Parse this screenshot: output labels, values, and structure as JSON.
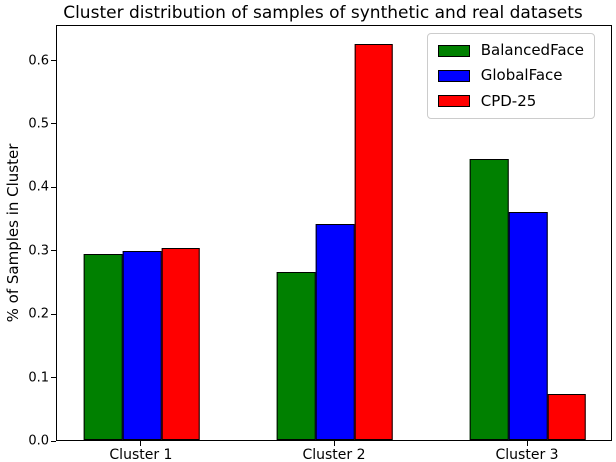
{
  "chart_data": {
    "type": "bar",
    "title": "Cluster distribution of samples of synthetic and real datasets",
    "xlabel": "",
    "ylabel": "% of Samples in Cluster",
    "categories": [
      "Cluster 1",
      "Cluster 2",
      "Cluster 3"
    ],
    "series": [
      {
        "name": "BalancedFace",
        "color": "#008000",
        "values": [
          0.293,
          0.265,
          0.443
        ]
      },
      {
        "name": "GlobalFace",
        "color": "#0000ff",
        "values": [
          0.298,
          0.34,
          0.36
        ]
      },
      {
        "name": "CPD-25",
        "color": "#ff0000",
        "values": [
          0.303,
          0.625,
          0.073
        ]
      }
    ],
    "yticks": [
      "0.0",
      "0.1",
      "0.2",
      "0.3",
      "0.4",
      "0.5",
      "0.6"
    ],
    "ylim": [
      0,
      0.656
    ],
    "bar_edge_color": "#000000",
    "legend_position": "upper right",
    "legend_border_color": "#cccccc",
    "grid": false,
    "background_color": "#ffffff"
  }
}
